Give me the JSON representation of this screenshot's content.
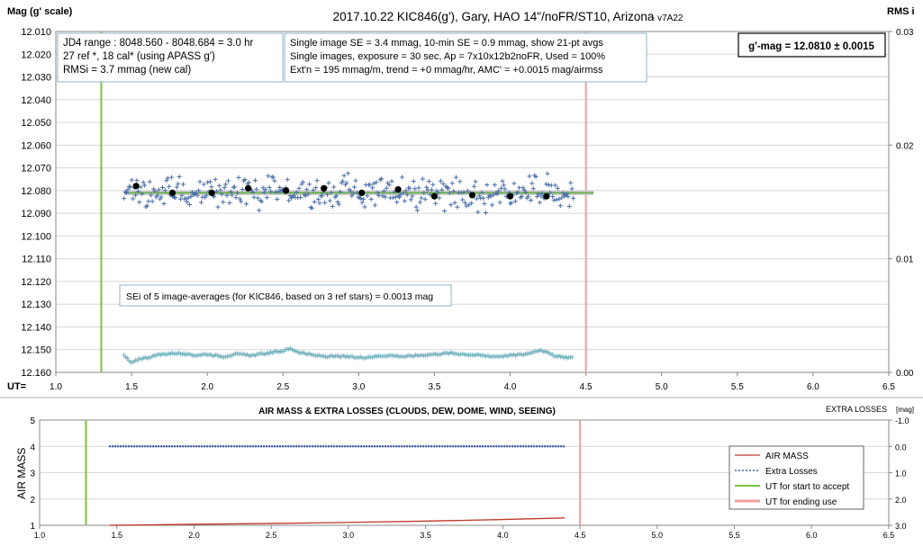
{
  "chart_data": [
    {
      "type": "scatter",
      "title": "2017.10.22  KIC846(g'),  Gary,  HAO  14\"/noFR/ST10,  Arizona",
      "version": "- v7A22",
      "ylabel": "Mag (g' scale)",
      "y2label": "RMS i",
      "xlabel_prefix": "UT=",
      "xlim": [
        1.0,
        6.5
      ],
      "ylim": [
        12.01,
        12.16
      ],
      "y2lim": [
        0.0,
        0.03
      ],
      "x_ticks": [
        "1.0",
        "1.5",
        "2.0",
        "2.5",
        "3.0",
        "3.5",
        "4.0",
        "4.5",
        "5.0",
        "5.5",
        "6.0",
        "6.5"
      ],
      "y_ticks": [
        "12.010",
        "12.020",
        "12.030",
        "12.040",
        "12.050",
        "12.060",
        "12.070",
        "12.080",
        "12.090",
        "12.100",
        "12.110",
        "12.120",
        "12.130",
        "12.140",
        "12.150",
        "12.160"
      ],
      "y2_ticks": [
        "0.03",
        "0.02",
        "0.01",
        "0.00"
      ],
      "grid": true,
      "info_box_left": [
        "JD4 range : 8048.560 - 8048.684 =  3.0  hr",
        "27 ref *, 18 cal* (using APASS g')",
        "RMSi = 3.7 mmag (new cal)"
      ],
      "info_box_mid": [
        "Single image SE = 3.4 mmag, 10-min SE = 0.9 mmag, show 21-pt avgs",
        "Single images, exposure = 30 sec, Ap = 7x10x12b2noFR, Used = 100%",
        "Ext'n = 195 mmag/m, trend =  +0 mmag/hr, AMC' = +0.0015 mag/airmss"
      ],
      "result_box": "g'-mag = 12.0810 ± 0.0015",
      "sei_note": "SEi of 5 image-averages (for KIC846, based on 3 ref stars) = 0.0013 mag",
      "accept_start_ut": 1.3,
      "end_use_ut": 4.5,
      "model_mag": 12.081,
      "fit_start_ut": 1.45,
      "fit_end_ut": 4.55,
      "series": [
        {
          "name": "5-image averages",
          "x": [
            1.53,
            1.77,
            2.03,
            2.27,
            2.52,
            2.77,
            3.02,
            3.26,
            3.5,
            3.75,
            4.0,
            4.24
          ],
          "y": [
            12.078,
            12.081,
            12.081,
            12.079,
            12.08,
            12.079,
            12.081,
            12.0795,
            12.0825,
            12.082,
            12.0825,
            12.0825
          ]
        },
        {
          "name": "RMS i",
          "x": [
            1.45,
            1.5,
            1.55,
            1.6,
            1.7,
            1.8,
            1.9,
            2.0,
            2.1,
            2.2,
            2.3,
            2.4,
            2.5,
            2.55,
            2.6,
            2.7,
            2.8,
            2.9,
            3.0,
            3.1,
            3.2,
            3.3,
            3.4,
            3.5,
            3.6,
            3.7,
            3.8,
            3.9,
            4.0,
            4.1,
            4.2,
            4.3,
            4.4
          ],
          "y": [
            0.0015,
            0.0008,
            0.0012,
            0.0013,
            0.0016,
            0.0017,
            0.0015,
            0.0016,
            0.0014,
            0.0016,
            0.0015,
            0.0017,
            0.0019,
            0.0021,
            0.0018,
            0.0015,
            0.0014,
            0.0014,
            0.0013,
            0.0014,
            0.0015,
            0.0014,
            0.0015,
            0.0016,
            0.0017,
            0.0016,
            0.0015,
            0.0014,
            0.0015,
            0.0016,
            0.002,
            0.0014,
            0.0013
          ]
        }
      ]
    },
    {
      "type": "line",
      "title": "AIR MASS & EXTRA LOSSES (CLOUDS, DEW, DOME, WIND, SEEING)",
      "ylabel": "AIR MASS",
      "y2label": "EXTRA LOSSES [mag]",
      "xlim": [
        1.0,
        6.5
      ],
      "ylim": [
        1,
        5
      ],
      "y2lim": [
        0.0,
        3.0
      ],
      "x_ticks": [
        "1.0",
        "1.5",
        "2.0",
        "2.5",
        "3.0",
        "3.5",
        "4.0",
        "4.5",
        "5.0",
        "5.5",
        "6.0",
        "6.5"
      ],
      "y_ticks": [
        "5",
        "4",
        "3",
        "2",
        "1"
      ],
      "y2_ticks": [
        "-1.0",
        "0.0",
        "1.0",
        "2.0",
        "3.0"
      ],
      "grid": true,
      "legend": [
        "AIR MASS",
        "Extra Losses",
        "UT for start to accept",
        "UT for ending use"
      ],
      "legend_position": "right",
      "accept_start_ut": 1.3,
      "end_use_ut": 4.5,
      "series": [
        {
          "name": "AIR MASS",
          "color": "#c0392b",
          "x": [
            1.45,
            1.75,
            2.0,
            2.5,
            3.0,
            3.5,
            4.0,
            4.2,
            4.4
          ],
          "y": [
            1.0,
            1.02,
            1.04,
            1.07,
            1.11,
            1.16,
            1.22,
            1.25,
            1.28
          ]
        },
        {
          "name": "Extra Losses",
          "color": "#1f3fa0",
          "x": [
            1.45,
            4.4
          ],
          "y": [
            0.0,
            0.0
          ]
        }
      ]
    }
  ]
}
